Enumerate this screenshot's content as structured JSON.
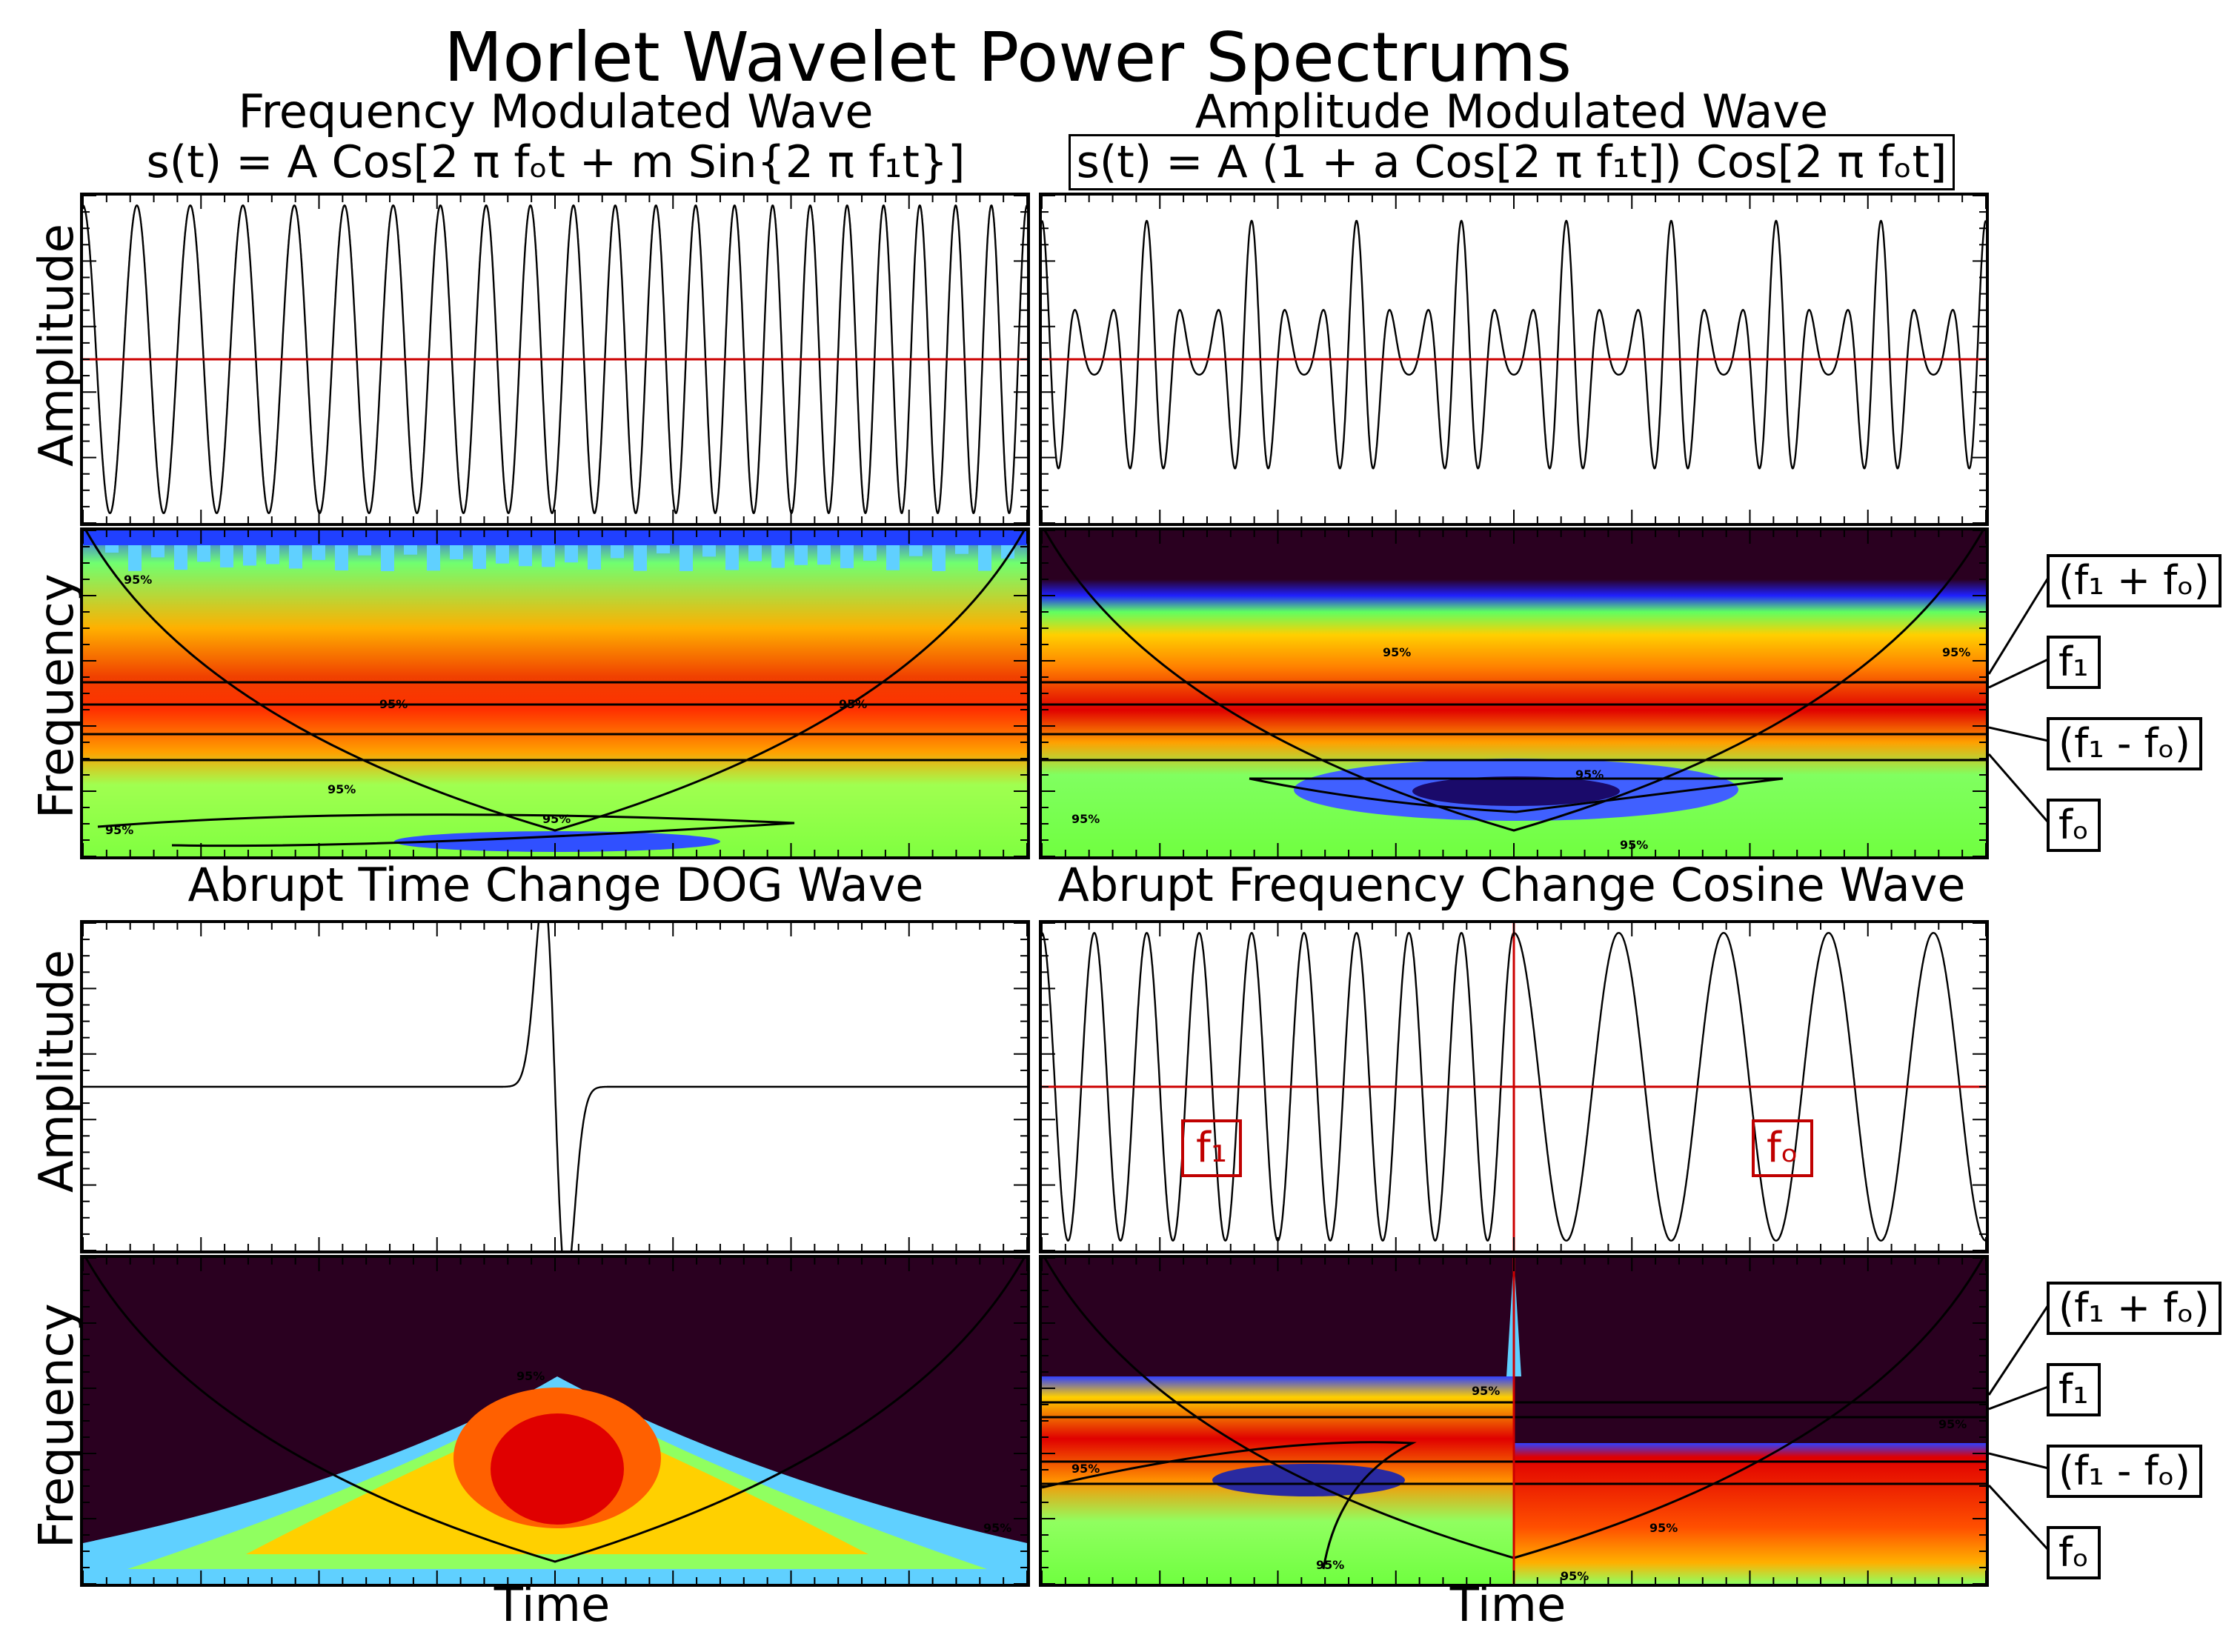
{
  "title": "Morlet Wavelet Power Spectrums",
  "panels": {
    "fm": {
      "title": "Frequency Modulated Wave",
      "formula": "s(t) = A Cos[2 π fₒt + m Sin{2 π f₁t}]"
    },
    "am": {
      "title": "Amplitude Modulated Wave",
      "formula": "s(t) = A (1 + a Cos[2 π f₁t]) Cos[2 π fₒt]"
    },
    "dog": {
      "title": "Abrupt Time Change DOG Wave"
    },
    "cos": {
      "title": "Abrupt Frequency Change Cosine Wave",
      "f1_label": "f₁",
      "fo_label": "fₒ"
    }
  },
  "axes": {
    "amplitude_label": "Amplitude",
    "frequency_label": "Frequency",
    "time_label": "Time"
  },
  "frequency_labels": [
    "(f₁ + fₒ)",
    "f₁",
    "(f₁  - fₒ)",
    "fₒ"
  ],
  "contour_label": "95%",
  "colors": {
    "signal": "#000000",
    "zero_line": "#cc0000",
    "background_power": "#2a0020",
    "high_power": "#e00000"
  },
  "chart_data": [
    {
      "type": "line",
      "title": "Frequency Modulated Wave",
      "ylabel": "Amplitude",
      "description_series": "FM cosine"
    },
    {
      "type": "line",
      "title": "Amplitude Modulated Wave",
      "ylabel": "Amplitude",
      "description_series": "AM cosine"
    },
    {
      "type": "heatmap",
      "ylabel": "Frequency",
      "band_labels": [
        "(f₁ + fₒ)",
        "f₁",
        "(f₁  - fₒ)",
        "fₒ"
      ],
      "contour_level": "95%"
    },
    {
      "type": "heatmap",
      "ylabel": "Frequency",
      "band_labels": [
        "(f₁ + fₒ)",
        "f₁",
        "(f₁  - fₒ)",
        "fₒ"
      ],
      "contour_level": "95%"
    },
    {
      "type": "line",
      "title": "Abrupt Time Change DOG Wave",
      "ylabel": "Amplitude"
    },
    {
      "type": "line",
      "title": "Abrupt Frequency Change Cosine Wave",
      "ylabel": "Amplitude",
      "annotations": [
        "f₁",
        "fₒ"
      ]
    },
    {
      "type": "heatmap",
      "ylabel": "Frequency",
      "xlabel": "Time",
      "contour_level": "95%"
    },
    {
      "type": "heatmap",
      "ylabel": "Frequency",
      "xlabel": "Time",
      "band_labels": [
        "(f₁ + fₒ)",
        "f₁",
        "(f₁  - fₒ)",
        "fₒ"
      ],
      "contour_level": "95%"
    }
  ]
}
